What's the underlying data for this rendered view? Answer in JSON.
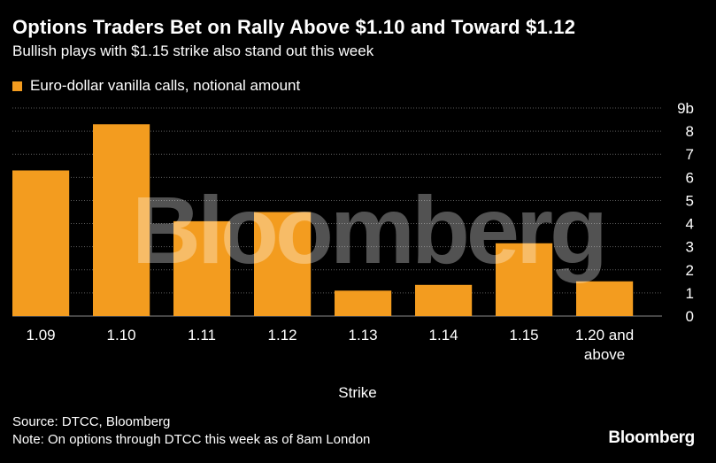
{
  "header": {
    "title": "Options Traders Bet on Rally Above $1.10 and Toward $1.12",
    "subtitle": "Bullish plays with $1.15 strike also stand out this week"
  },
  "legend": {
    "label": "Euro-dollar vanilla calls, notional amount",
    "color": "#F39C1F"
  },
  "watermark": "Bloomberg",
  "footer": {
    "source": "Source: DTCC, Bloomberg",
    "note": "Note: On options through DTCC this week as of 8am London",
    "brand": "Bloomberg"
  },
  "chart_data": {
    "type": "bar",
    "categories": [
      "1.09",
      "1.10",
      "1.11",
      "1.12",
      "1.13",
      "1.14",
      "1.15",
      "1.20 and above"
    ],
    "series": [
      {
        "name": "Euro-dollar vanilla calls, notional amount",
        "values": [
          6.3,
          8.3,
          4.1,
          4.5,
          1.1,
          1.35,
          3.15,
          1.5
        ],
        "color": "#F39C1F"
      }
    ],
    "xlabel": "Strike",
    "ylabel": "",
    "ylim": [
      0,
      9
    ],
    "yticks": [
      "0",
      "1",
      "2",
      "3",
      "4",
      "5",
      "6",
      "7",
      "8",
      "9b"
    ],
    "grid": true,
    "y_axis_side": "right"
  }
}
